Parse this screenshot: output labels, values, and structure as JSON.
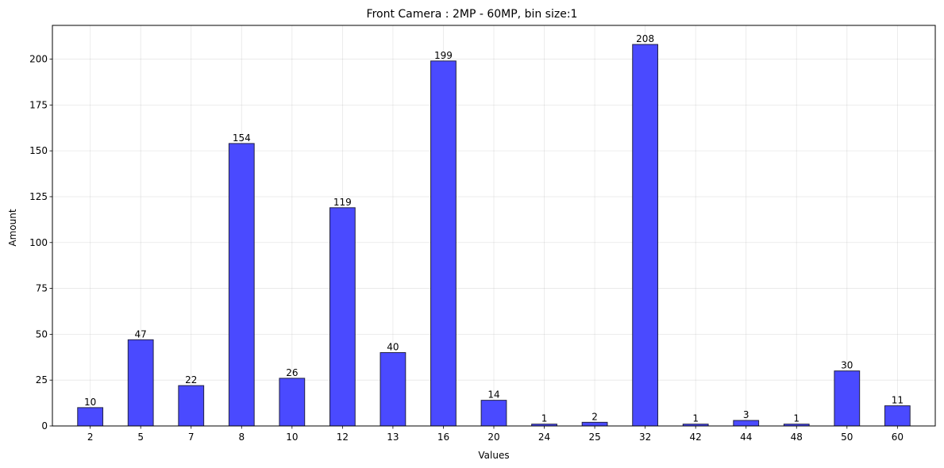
{
  "chart_data": {
    "type": "bar",
    "title": "Front Camera : 2MP - 60MP, bin size:1",
    "xlabel": "Values",
    "ylabel": "Amount",
    "categories": [
      "2",
      "5",
      "7",
      "8",
      "10",
      "12",
      "13",
      "16",
      "20",
      "24",
      "25",
      "32",
      "42",
      "44",
      "48",
      "50",
      "60"
    ],
    "values": [
      10,
      47,
      22,
      154,
      26,
      119,
      40,
      199,
      14,
      1,
      2,
      208,
      1,
      3,
      1,
      30,
      11
    ],
    "ylim": [
      0,
      218.4
    ],
    "yticks": [
      0,
      25,
      50,
      75,
      100,
      125,
      150,
      175,
      200
    ],
    "grid": true,
    "bar_color": "#4a4aff",
    "bar_edge_color": "#222244"
  }
}
